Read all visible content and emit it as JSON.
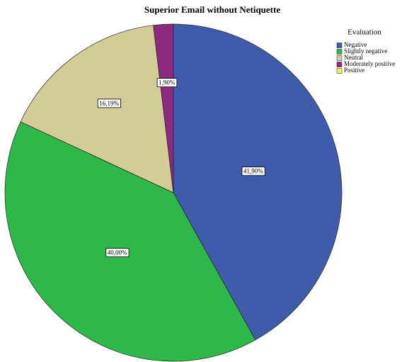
{
  "chart_data": {
    "type": "pie",
    "title": "Superior Email without Netiquette",
    "legend_title": "Evaluation",
    "categories": [
      "Negative",
      "Slightly negative",
      "Neutral",
      "Moderately positive",
      "Positive"
    ],
    "values": [
      41.9,
      40.0,
      16.19,
      1.9,
      0
    ],
    "value_labels": [
      "41,90%",
      "40,00%",
      "16,19%",
      "1,90%",
      null
    ],
    "colors": [
      "#3f5bab",
      "#2fb84a",
      "#d3cc96",
      "#8b2a7e",
      "#f4f05a"
    ],
    "legend": "top-right"
  }
}
